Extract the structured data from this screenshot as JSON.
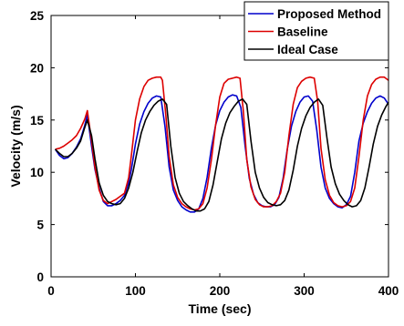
{
  "chart_data": {
    "type": "line",
    "title": "",
    "xlabel": "Time (sec)",
    "ylabel": "Velocity (m/s)",
    "xlim": [
      0,
      400
    ],
    "ylim": [
      0,
      25
    ],
    "xticks": [
      0,
      100,
      200,
      300,
      400
    ],
    "yticks": [
      0,
      5,
      10,
      15,
      20,
      25
    ],
    "grid": false,
    "legend_position": "top-right",
    "series": [
      {
        "name": "Proposed Method",
        "color": "#0000cc",
        "x": [
          5,
          10,
          15,
          20,
          25,
          30,
          35,
          40,
          43,
          48,
          52,
          57,
          62,
          67,
          72,
          77,
          82,
          87,
          92,
          95,
          100,
          105,
          110,
          115,
          120,
          125,
          130,
          135,
          140,
          145,
          150,
          155,
          160,
          165,
          170,
          175,
          180,
          185,
          190,
          195,
          200,
          205,
          210,
          215,
          220,
          225,
          230,
          235,
          240,
          245,
          250,
          255,
          260,
          265,
          270,
          275,
          280,
          285,
          290,
          295,
          300,
          305,
          310,
          315,
          320,
          325,
          330,
          335,
          340,
          345,
          350,
          355,
          360,
          365,
          370,
          375,
          380,
          385,
          390,
          395,
          400
        ],
        "values": [
          12.2,
          11.6,
          11.3,
          11.4,
          11.8,
          12.4,
          13.2,
          14.5,
          15.5,
          12.5,
          10.3,
          8.5,
          7.2,
          6.8,
          6.8,
          7.0,
          7.3,
          7.8,
          9.0,
          10.2,
          12.7,
          14.6,
          15.8,
          16.6,
          17.1,
          17.3,
          17.2,
          14.4,
          10.5,
          8.3,
          7.3,
          6.7,
          6.4,
          6.2,
          6.2,
          6.5,
          7.5,
          9.5,
          12.3,
          14.5,
          15.9,
          16.7,
          17.2,
          17.4,
          17.3,
          16.2,
          12.5,
          9.4,
          7.9,
          7.1,
          6.8,
          6.7,
          6.7,
          6.9,
          7.6,
          9.4,
          12.2,
          14.4,
          15.8,
          16.7,
          17.2,
          17.3,
          16.8,
          14.0,
          10.5,
          8.5,
          7.5,
          7.0,
          6.7,
          6.6,
          6.9,
          7.7,
          10.0,
          13.0,
          14.7,
          15.8,
          16.6,
          17.1,
          17.3,
          17.1,
          16.5
        ]
      },
      {
        "name": "Baseline",
        "color": "#dd0000",
        "x": [
          5,
          10,
          15,
          20,
          25,
          30,
          35,
          40,
          43,
          48,
          52,
          57,
          62,
          67,
          72,
          77,
          82,
          87,
          92,
          95,
          100,
          105,
          110,
          115,
          120,
          125,
          130,
          132,
          136,
          140,
          145,
          150,
          155,
          160,
          165,
          170,
          175,
          180,
          185,
          190,
          195,
          200,
          205,
          210,
          215,
          220,
          224,
          228,
          232,
          237,
          242,
          247,
          252,
          257,
          262,
          267,
          272,
          277,
          282,
          287,
          292,
          297,
          302,
          307,
          312,
          316,
          320,
          325,
          330,
          335,
          340,
          345,
          350,
          355,
          360,
          365,
          370,
          375,
          380,
          385,
          390,
          395,
          400
        ],
        "values": [
          12.2,
          12.3,
          12.5,
          12.8,
          13.1,
          13.5,
          14.2,
          15.1,
          15.9,
          13.0,
          10.5,
          8.3,
          7.3,
          7.0,
          7.2,
          7.4,
          7.7,
          8.0,
          9.5,
          11.5,
          15.0,
          17.0,
          18.2,
          18.8,
          19.0,
          19.1,
          19.1,
          18.8,
          15.5,
          11.5,
          8.8,
          7.6,
          7.0,
          6.7,
          6.5,
          6.4,
          6.5,
          7.0,
          8.5,
          11.2,
          14.5,
          17.2,
          18.5,
          18.9,
          19.0,
          19.1,
          19.0,
          15.8,
          11.2,
          8.6,
          7.4,
          6.9,
          6.7,
          6.7,
          6.8,
          7.2,
          8.0,
          10.0,
          13.5,
          16.5,
          18.1,
          18.7,
          19.0,
          19.1,
          19.0,
          16.8,
          12.3,
          9.3,
          7.8,
          7.1,
          6.8,
          6.7,
          6.8,
          7.2,
          8.5,
          11.5,
          15.0,
          17.3,
          18.4,
          18.9,
          19.1,
          19.1,
          18.8
        ]
      },
      {
        "name": "Ideal Case",
        "color": "#000000",
        "x": [
          5,
          10,
          15,
          20,
          25,
          30,
          35,
          40,
          43,
          48,
          52,
          57,
          62,
          67,
          72,
          77,
          82,
          87,
          92,
          97,
          102,
          107,
          112,
          117,
          122,
          127,
          132,
          137,
          142,
          147,
          152,
          157,
          162,
          167,
          172,
          177,
          182,
          187,
          192,
          197,
          202,
          207,
          212,
          217,
          222,
          227,
          232,
          237,
          242,
          247,
          252,
          257,
          262,
          267,
          272,
          277,
          282,
          287,
          292,
          297,
          302,
          307,
          312,
          317,
          322,
          327,
          332,
          337,
          342,
          347,
          352,
          357,
          362,
          367,
          372,
          377,
          382,
          387,
          392,
          397,
          400
        ],
        "values": [
          12.2,
          11.8,
          11.5,
          11.5,
          11.8,
          12.3,
          13.0,
          14.3,
          15.0,
          13.5,
          11.3,
          9.0,
          7.8,
          7.2,
          7.0,
          6.9,
          7.0,
          7.5,
          8.5,
          10.0,
          12.0,
          13.8,
          15.0,
          15.8,
          16.4,
          16.8,
          17.0,
          16.5,
          12.5,
          9.5,
          8.0,
          7.2,
          6.8,
          6.5,
          6.3,
          6.3,
          6.5,
          7.2,
          8.8,
          11.0,
          13.2,
          14.7,
          15.7,
          16.3,
          16.8,
          17.0,
          16.5,
          13.0,
          10.0,
          8.5,
          7.6,
          7.1,
          6.9,
          6.8,
          6.9,
          7.3,
          8.3,
          10.2,
          12.5,
          14.2,
          15.4,
          16.2,
          16.7,
          17.0,
          16.4,
          13.3,
          10.5,
          8.9,
          7.9,
          7.3,
          6.9,
          6.7,
          6.8,
          7.3,
          8.5,
          10.5,
          12.7,
          14.4,
          15.5,
          16.3,
          16.7
        ]
      }
    ]
  }
}
